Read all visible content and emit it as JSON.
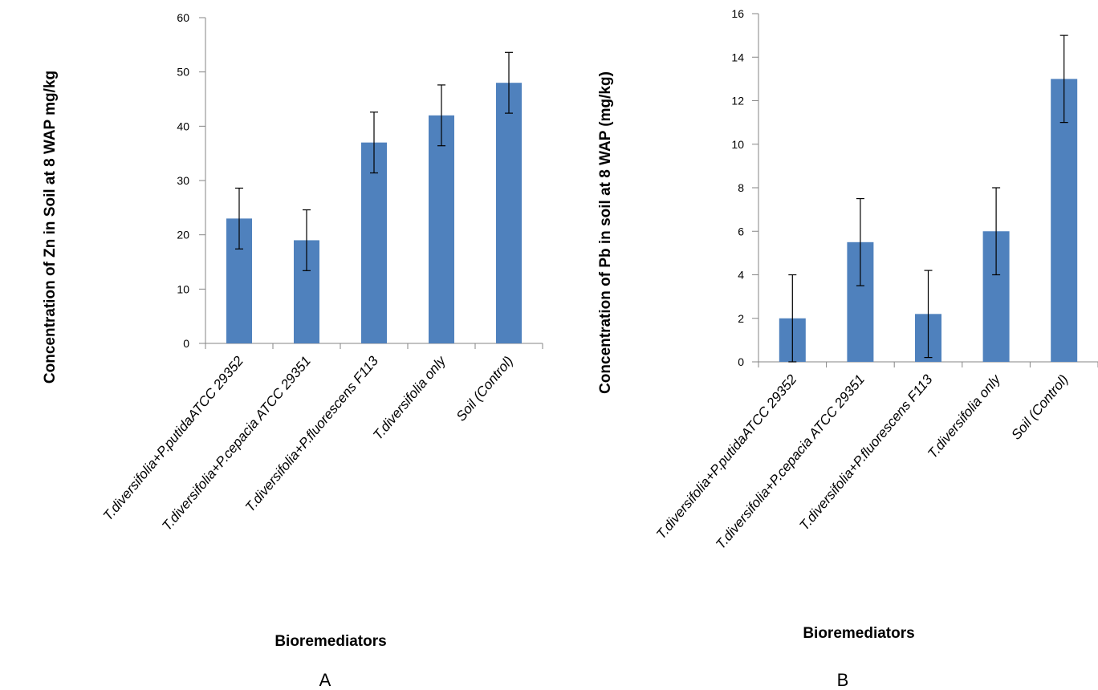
{
  "figure": {
    "panel_labels": [
      "A",
      "B"
    ]
  },
  "chart_data": [
    {
      "type": "bar",
      "panel": "A",
      "title": "",
      "xlabel": "Bioremediators",
      "ylabel": "Concentration of Zn in Soil at 8 WAP mg/kg",
      "ylim": [
        0,
        60
      ],
      "yticks": [
        0,
        10,
        20,
        30,
        40,
        50,
        60
      ],
      "categories": [
        "T.diversifolia+P.putidaATCC 29352",
        "T.diversifolia+P.cepacia ATCC 29351",
        "T.diversifolia+P.fluorescens F113",
        "T.diversifolia only",
        "Soil (Control)"
      ],
      "values": [
        23,
        19,
        37,
        42,
        48
      ],
      "errors": [
        5.6,
        5.6,
        5.6,
        5.6,
        5.6
      ],
      "bar_color": "#4f81bd",
      "grid": false,
      "legend": "none"
    },
    {
      "type": "bar",
      "panel": "B",
      "title": "",
      "xlabel": "Bioremediators",
      "ylabel": "Concentration of Pb in soil at 8 WAP (mg/kg)",
      "ylim": [
        0,
        16
      ],
      "yticks": [
        0,
        2,
        4,
        6,
        8,
        10,
        12,
        14,
        16
      ],
      "categories": [
        "T.diversifolia+P.putidaATCC 29352",
        "T.diversifolia+P.cepacia ATCC 29351",
        "T.diversifolia+P.fluorescens F113",
        "T.diversifolia only",
        "Soil (Control)"
      ],
      "values": [
        2,
        5.5,
        2.2,
        6,
        13
      ],
      "errors": [
        2,
        2,
        2,
        2,
        2
      ],
      "bar_color": "#4f81bd",
      "grid": false,
      "legend": "none"
    }
  ]
}
